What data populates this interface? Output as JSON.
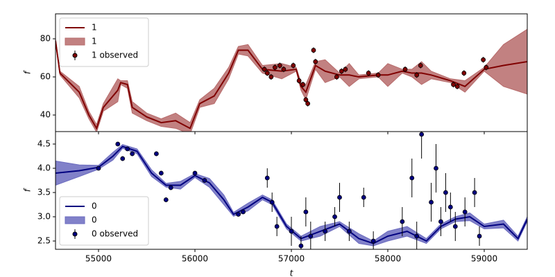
{
  "chart_data": [
    {
      "type": "line",
      "ylabel": "f",
      "xlim": [
        54554,
        59446
      ],
      "ylim": [
        31.3,
        93.1
      ],
      "yticks": [
        40,
        60,
        80
      ],
      "legend": "upper left",
      "x": [
        54554,
        54600,
        54800,
        54900,
        54980,
        55050,
        55200,
        55230,
        55300,
        55350,
        55500,
        55650,
        55800,
        55950,
        56050,
        56200,
        56350,
        56450,
        56550,
        56700,
        56900,
        57050,
        57100,
        57150,
        57250,
        57350,
        57500,
        57600,
        57700,
        57900,
        58000,
        58150,
        58250,
        58350,
        58450,
        58650,
        58800,
        59000,
        59200,
        59446
      ],
      "series": [
        {
          "name": "1",
          "kind": "line",
          "color": "#800000",
          "values": [
            79,
            62,
            52,
            40,
            33,
            44,
            53,
            57,
            56,
            44,
            39,
            36,
            37,
            33,
            46,
            50,
            62,
            74,
            74,
            64,
            63,
            64,
            55,
            52,
            66,
            63,
            61,
            61,
            60,
            61,
            61,
            63,
            62,
            62,
            61,
            58,
            55,
            64,
            66,
            68
          ]
        },
        {
          "name": "1",
          "kind": "band",
          "color": "#b76b6b",
          "lower": [
            78,
            61,
            49,
            38,
            31,
            42,
            47,
            56,
            54,
            41,
            37,
            34,
            33,
            30,
            44,
            46,
            59,
            72,
            71,
            62,
            59,
            63,
            53,
            48,
            64,
            57,
            60,
            55,
            59,
            60,
            55,
            62,
            60,
            56,
            59,
            57,
            52,
            63,
            55,
            51
          ],
          "upper": [
            80,
            63,
            55,
            42,
            35,
            46,
            59,
            58,
            58,
            47,
            41,
            38,
            41,
            36,
            48,
            54,
            65,
            76,
            77,
            66,
            67,
            65,
            57,
            56,
            68,
            69,
            62,
            67,
            61,
            62,
            67,
            64,
            64,
            68,
            63,
            59,
            58,
            65,
            77,
            85
          ]
        },
        {
          "name": "1 observed",
          "kind": "errorbar",
          "color": "#000000",
          "marker_color": "#800000",
          "x": [
            56720,
            56750,
            56790,
            56830,
            56880,
            56920,
            57020,
            57080,
            57120,
            57150,
            57170,
            57230,
            57250,
            57470,
            57520,
            57560,
            57800,
            57900,
            58180,
            58300,
            58340,
            58680,
            58720,
            58790,
            58990,
            59020
          ],
          "values": [
            64,
            62,
            60,
            65,
            66,
            64,
            66,
            58,
            56,
            48,
            46,
            74,
            68,
            60,
            63,
            64,
            62,
            61,
            64,
            61,
            66,
            56,
            55,
            62,
            69,
            65
          ],
          "errors": [
            1.5,
            1.5,
            1.5,
            1.5,
            1.5,
            1.5,
            1.5,
            1.5,
            1.5,
            1.5,
            1.5,
            1.5,
            1.5,
            1.5,
            1.5,
            1.5,
            1.5,
            1.5,
            1.5,
            1.5,
            1.5,
            1.5,
            1.5,
            1.5,
            1.5,
            1.5
          ]
        }
      ]
    },
    {
      "type": "line",
      "ylabel": "f",
      "xlabel": "t",
      "xlim": [
        54554,
        59446
      ],
      "ylim": [
        2.329,
        4.757
      ],
      "yticks": [
        {
          "value": 2.5,
          "label": "2.5"
        },
        {
          "value": 3.0,
          "label": "3.0"
        },
        {
          "value": 3.5,
          "label": "3.5"
        },
        {
          "value": 4.0,
          "label": "4.0"
        },
        {
          "value": 4.5,
          "label": "4.5"
        }
      ],
      "xticks": [
        55000,
        56000,
        57000,
        58000,
        59000
      ],
      "legend": "lower left",
      "x": [
        54554,
        54800,
        55000,
        55150,
        55250,
        55400,
        55550,
        55700,
        55850,
        56000,
        56150,
        56300,
        56400,
        56550,
        56700,
        56800,
        56950,
        57100,
        57300,
        57500,
        57700,
        57850,
        58000,
        58200,
        58400,
        58550,
        58700,
        58850,
        59000,
        59200,
        59350,
        59446
      ],
      "series": [
        {
          "name": "0",
          "kind": "line",
          "color": "#000080",
          "values": [
            3.9,
            3.95,
            4.02,
            4.25,
            4.45,
            4.35,
            3.9,
            3.65,
            3.65,
            3.85,
            3.7,
            3.35,
            3.05,
            3.2,
            3.4,
            3.3,
            2.8,
            2.55,
            2.7,
            2.85,
            2.55,
            2.45,
            2.6,
            2.7,
            2.5,
            2.8,
            2.95,
            3.0,
            2.8,
            2.85,
            2.55,
            2.95
          ]
        },
        {
          "name": "0",
          "kind": "band",
          "color": "#6b6bbf",
          "lower": [
            3.65,
            3.83,
            3.98,
            4.17,
            4.41,
            4.3,
            3.83,
            3.61,
            3.57,
            3.81,
            3.61,
            3.25,
            3.01,
            3.12,
            3.35,
            3.25,
            2.75,
            2.5,
            2.6,
            2.8,
            2.45,
            2.4,
            2.5,
            2.6,
            2.45,
            2.75,
            2.9,
            2.92,
            2.75,
            2.77,
            2.5,
            2.9
          ],
          "upper": [
            4.15,
            4.07,
            4.06,
            4.33,
            4.49,
            4.4,
            3.97,
            3.69,
            3.73,
            3.89,
            3.79,
            3.45,
            3.09,
            3.28,
            3.45,
            3.35,
            2.85,
            2.6,
            2.8,
            2.9,
            2.65,
            2.5,
            2.7,
            2.8,
            2.55,
            2.85,
            3.0,
            3.08,
            2.85,
            2.93,
            2.6,
            3.0
          ]
        },
        {
          "name": "0 observed",
          "kind": "errorbar",
          "color": "#000000",
          "marker_color": "#000080",
          "x": [
            55000,
            55200,
            55250,
            55300,
            55350,
            55600,
            55650,
            55700,
            55750,
            56000,
            56100,
            56450,
            56500,
            56750,
            56800,
            56850,
            57000,
            57100,
            57150,
            57200,
            57350,
            57450,
            57500,
            57600,
            57750,
            57850,
            58150,
            58250,
            58300,
            58350,
            58450,
            58500,
            58550,
            58600,
            58650,
            58700,
            58800,
            58900,
            58950
          ],
          "values": [
            4.0,
            4.5,
            4.2,
            4.4,
            4.3,
            4.3,
            3.9,
            3.35,
            3.6,
            3.9,
            3.75,
            3.05,
            3.1,
            3.8,
            3.3,
            2.8,
            2.7,
            2.4,
            3.1,
            2.6,
            2.7,
            3.0,
            3.4,
            2.7,
            3.4,
            2.5,
            2.9,
            3.8,
            2.6,
            4.7,
            3.3,
            4.0,
            2.9,
            3.5,
            3.2,
            2.8,
            3.1,
            3.5,
            2.6
          ],
          "errors": [
            0.03,
            0.03,
            0.05,
            0.04,
            0.05,
            0.05,
            0.05,
            0.05,
            0.05,
            0.04,
            0.05,
            0.04,
            0.03,
            0.2,
            0.2,
            0.2,
            0.3,
            0.2,
            0.3,
            0.3,
            0.2,
            0.2,
            0.3,
            0.2,
            0.2,
            0.2,
            0.3,
            0.4,
            0.3,
            0.5,
            0.4,
            0.5,
            0.3,
            0.4,
            0.3,
            0.3,
            0.3,
            0.3,
            0.2
          ]
        }
      ]
    }
  ]
}
